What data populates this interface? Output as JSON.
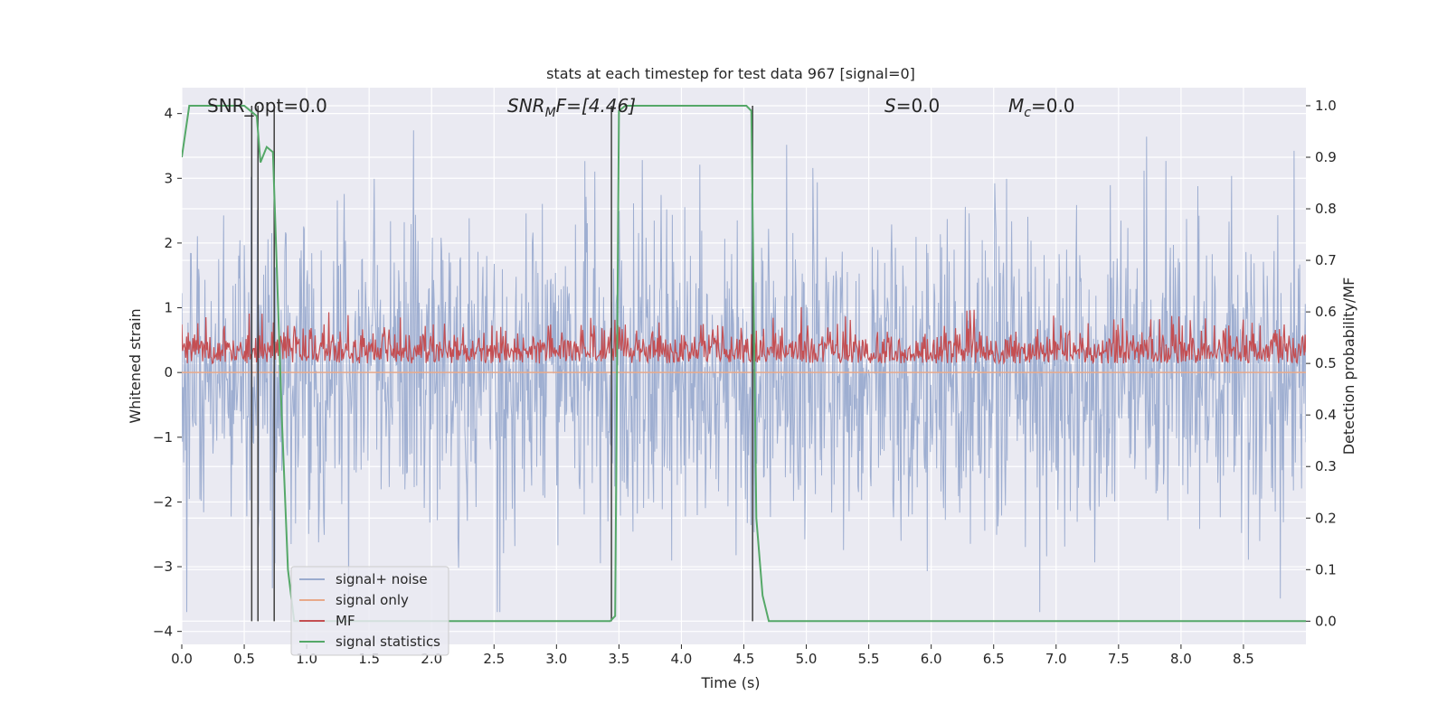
{
  "chart_data": {
    "type": "line",
    "title": "stats at each timestep for test data 967 [signal=0]",
    "xlabel": "Time (s)",
    "ylabel_left": "Whitened strain",
    "ylabel_right": "Detection probability/MF",
    "xlim": [
      0.0,
      9.0
    ],
    "ylim_left": [
      -4.2,
      4.4
    ],
    "ylim_right": [
      -0.045,
      1.035
    ],
    "x_ticks": [
      "0.0",
      "0.5",
      "1.0",
      "1.5",
      "2.0",
      "2.5",
      "3.0",
      "3.5",
      "4.0",
      "4.5",
      "5.0",
      "5.5",
      "6.0",
      "6.5",
      "7.0",
      "7.5",
      "8.0",
      "8.5"
    ],
    "y_ticks_left": [
      "4",
      "3",
      "2",
      "1",
      "0",
      "−1",
      "−2",
      "−3",
      "−4"
    ],
    "y_ticks_right": [
      "1.0",
      "0.9",
      "0.8",
      "0.7",
      "0.6",
      "0.5",
      "0.4",
      "0.3",
      "0.2",
      "0.1",
      "0.0"
    ],
    "grid": true,
    "annotations": {
      "snr_opt": "SNR_opt=0.0",
      "snr_mf_main": "SNR",
      "snr_mf_sub": "M",
      "snr_mf_rest": "F=[4.46]",
      "s_main": "S",
      "s_rest": "=0.0",
      "mc_main": "M",
      "mc_sub": "c",
      "mc_rest": "=0.0"
    },
    "series": [
      {
        "name": "signal+ noise",
        "axis": "left",
        "color": "#9aabcf",
        "description_values": {
          "mean": 0.0,
          "std": 1.2,
          "min": -3.7,
          "max": 3.9
        }
      },
      {
        "name": "signal only",
        "axis": "left",
        "color": "#e8a98a",
        "values_constant": 0.0
      },
      {
        "name": "MF",
        "axis": "right",
        "color": "#c44e52",
        "description_values": {
          "baseline": 0.5,
          "max": 0.62
        }
      },
      {
        "name": "signal statistics",
        "axis": "right",
        "color": "#55a868",
        "points": [
          [
            0.0,
            0.9
          ],
          [
            0.06,
            1.0
          ],
          [
            0.5,
            1.0
          ],
          [
            0.55,
            0.99
          ],
          [
            0.6,
            0.98
          ],
          [
            0.63,
            0.89
          ],
          [
            0.68,
            0.92
          ],
          [
            0.73,
            0.91
          ],
          [
            0.8,
            0.4
          ],
          [
            0.85,
            0.1
          ],
          [
            0.9,
            0.0
          ],
          [
            3.43,
            0.0
          ],
          [
            3.47,
            0.01
          ],
          [
            3.5,
            0.99
          ],
          [
            3.55,
            1.0
          ],
          [
            4.52,
            1.0
          ],
          [
            4.56,
            0.99
          ],
          [
            4.6,
            0.2
          ],
          [
            4.65,
            0.05
          ],
          [
            4.7,
            0.0
          ],
          [
            9.0,
            0.0
          ]
        ]
      }
    ],
    "vlines_x": [
      0.56,
      0.61,
      0.74,
      3.44,
      4.57
    ]
  },
  "legend": {
    "items": [
      {
        "label": "signal+ noise",
        "color": "#9aabcf"
      },
      {
        "label": "signal only",
        "color": "#e8a98a"
      },
      {
        "label": "MF",
        "color": "#c44e52"
      },
      {
        "label": "signal statistics",
        "color": "#55a868"
      }
    ]
  },
  "colors": {
    "plot_bg": "#eaeaf2",
    "grid": "#ffffff",
    "vline": "#404040"
  }
}
